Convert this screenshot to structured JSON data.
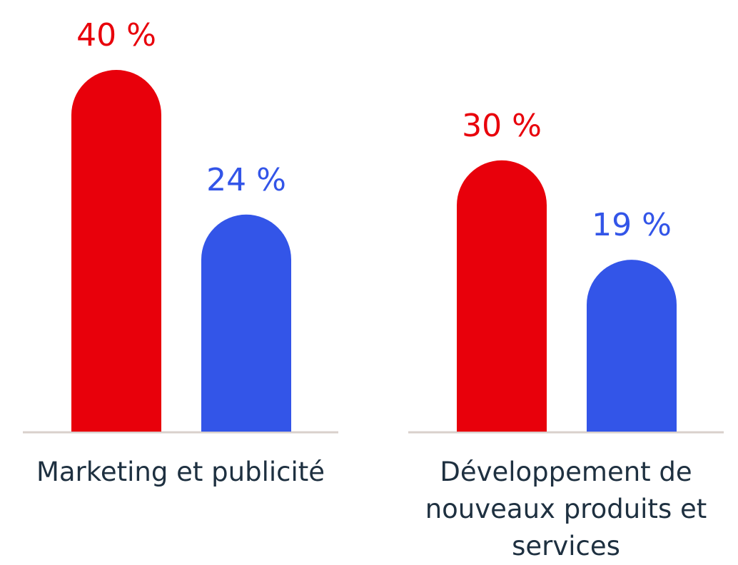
{
  "chart_data": {
    "type": "bar",
    "categories": [
      "Marketing et publicité",
      "Développement de nouveaux produits et services"
    ],
    "series": [
      {
        "color": "#e8000b",
        "values": [
          40,
          30
        ],
        "value_labels": [
          "40 %",
          "30 %"
        ]
      },
      {
        "color": "#3355e8",
        "values": [
          24,
          19
        ],
        "value_labels": [
          "24 %",
          "19 %"
        ]
      }
    ],
    "ylim": [
      0,
      40
    ]
  }
}
